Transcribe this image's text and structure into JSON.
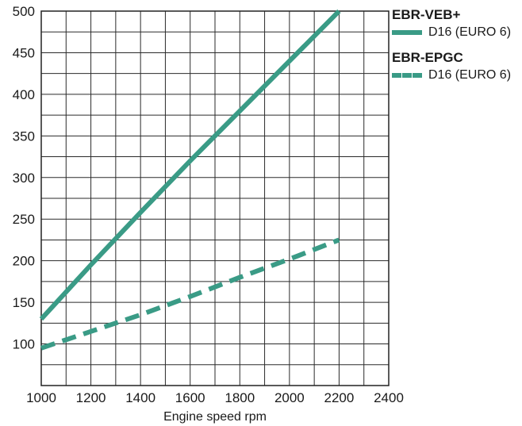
{
  "chart_data": {
    "type": "line",
    "xlabel": "Engine speed rpm",
    "ylabel": "",
    "xlim": [
      1000,
      2400
    ],
    "ylim": [
      50,
      500
    ],
    "x_ticks": [
      "1000",
      "1200",
      "1400",
      "1600",
      "1800",
      "2000",
      "2200",
      "2400"
    ],
    "y_ticks": [
      "500",
      "450",
      "400",
      "350",
      "300",
      "250",
      "200",
      "150",
      "100"
    ],
    "grid": true,
    "legend_position": "right",
    "series": [
      {
        "group": "EBR-VEB+",
        "name": "D16 (EURO 6)",
        "style": "solid",
        "color": "#3a9b86",
        "x": [
          1000,
          1200,
          1400,
          1600,
          1800,
          2000,
          2200
        ],
        "y": [
          130,
          195,
          258,
          320,
          380,
          440,
          500
        ]
      },
      {
        "group": "EBR-EPGC",
        "name": "D16 (EURO 6)",
        "style": "dashed",
        "color": "#3a9b86",
        "x": [
          1000,
          1200,
          1400,
          1600,
          1800,
          2000,
          2200
        ],
        "y": [
          95,
          115,
          135,
          157,
          180,
          202,
          225
        ]
      }
    ]
  },
  "legend": {
    "groups": [
      {
        "title": "EBR-VEB+",
        "entry": "D16 (EURO 6)"
      },
      {
        "title": "EBR-EPGC",
        "entry": "D16 (EURO 6)"
      }
    ]
  }
}
